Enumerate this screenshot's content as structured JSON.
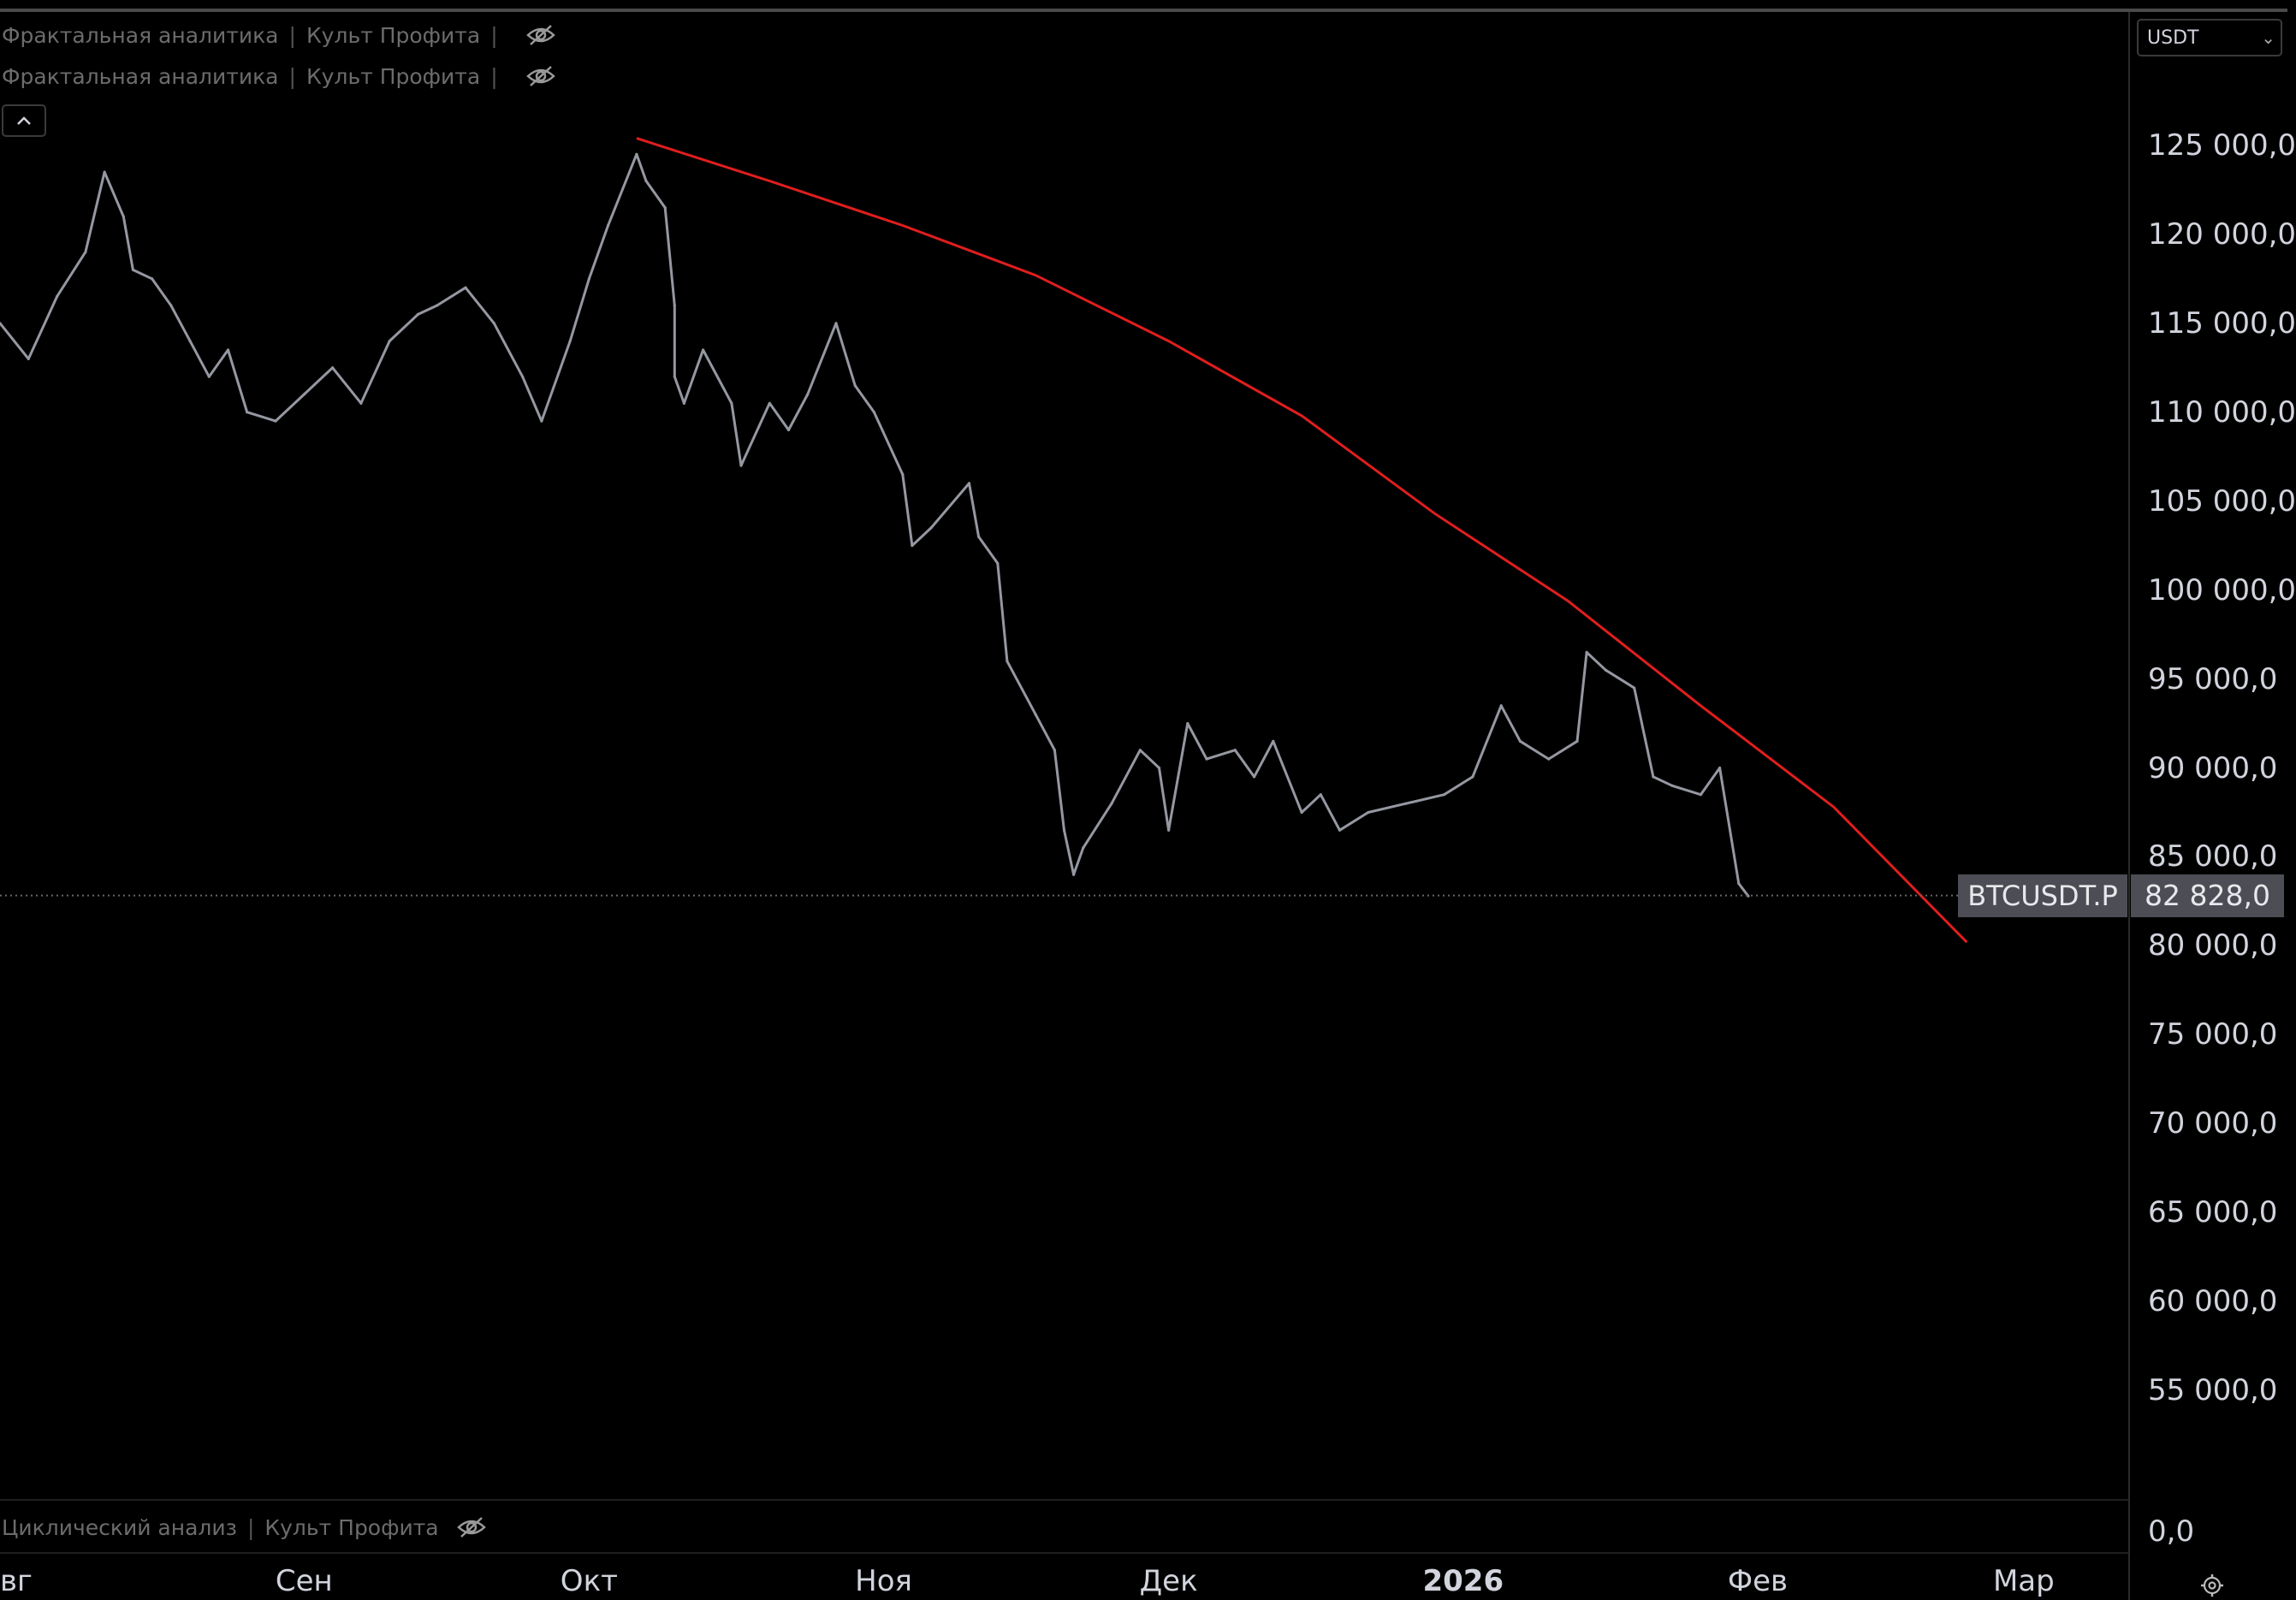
{
  "indicators": [
    {
      "name": "Фрактальная аналитика",
      "author": "Культ Профита",
      "trail": "|",
      "icon": "eye-hidden-icon"
    },
    {
      "name": "Фрактальная аналитика",
      "author": "Культ Профита",
      "trail": "|",
      "icon": "eye-hidden-icon"
    }
  ],
  "oscillator": {
    "name": "Циклический анализ",
    "author": "Культ Профита",
    "icon": "eye-hidden-icon",
    "value_label": "0,0"
  },
  "currency_selector": {
    "value": "USDT"
  },
  "collapse_button": {
    "icon": "chevron-up-icon"
  },
  "settings_icon": "gear-icon",
  "separator": "|",
  "colors": {
    "background": "#000000",
    "price_series": "#9598a1",
    "trendline": "#e01e1e",
    "tag_bg": "#4d4d55"
  },
  "chart_data": {
    "type": "line",
    "symbol": "BTCUSDT.P",
    "last_price": 82828,
    "last_price_label": "82 828,0",
    "x_axis_labels": [
      "вг",
      "Сен",
      "Окт",
      "Ноя",
      "Дек",
      "2026",
      "Фев",
      "Мар"
    ],
    "y_axis_labels": [
      "125 000,0",
      "120 000,0",
      "115 000,0",
      "110 000,0",
      "105 000,0",
      "100 000,0",
      "95 000,0",
      "90 000,0",
      "85 000,0",
      "80 000,0",
      "75 000,0",
      "70 000,0",
      "65 000,0",
      "60 000,0",
      "55 000,0"
    ],
    "y_ticks": [
      125000,
      120000,
      115000,
      110000,
      105000,
      100000,
      95000,
      90000,
      85000,
      80000,
      75000,
      70000,
      65000,
      60000,
      55000
    ],
    "x_range": [
      "2025-07-31",
      "2026-03-12"
    ],
    "ylim": [
      48800,
      132500
    ],
    "grid": false,
    "series": [
      {
        "x": [
          "2025-07-31",
          "2025-08-03",
          "2025-08-06",
          "2025-08-09",
          "2025-08-11",
          "2025-08-13",
          "2025-08-14",
          "2025-08-16",
          "2025-08-18",
          "2025-08-20",
          "2025-08-22",
          "2025-08-24",
          "2025-08-26",
          "2025-08-29",
          "2025-09-01",
          "2025-09-04",
          "2025-09-07",
          "2025-09-10",
          "2025-09-13",
          "2025-09-15",
          "2025-09-18",
          "2025-09-21",
          "2025-09-24",
          "2025-09-26",
          "2025-09-29",
          "2025-10-01",
          "2025-10-03",
          "2025-10-06",
          "2025-10-07",
          "2025-10-09",
          "2025-10-10",
          "2025-10-10",
          "2025-10-11",
          "2025-10-13",
          "2025-10-16",
          "2025-10-17",
          "2025-10-20",
          "2025-10-22",
          "2025-10-24",
          "2025-10-27",
          "2025-10-29",
          "2025-10-31",
          "2025-11-03",
          "2025-11-04",
          "2025-11-06",
          "2025-11-10",
          "2025-11-11",
          "2025-11-13",
          "2025-11-14",
          "2025-11-17",
          "2025-11-19",
          "2025-11-20",
          "2025-11-21",
          "2025-11-22",
          "2025-11-25",
          "2025-11-28",
          "2025-11-30",
          "2025-12-01",
          "2025-12-03",
          "2025-12-05",
          "2025-12-08",
          "2025-12-10",
          "2025-12-12",
          "2025-12-15",
          "2025-12-17",
          "2025-12-19",
          "2025-12-22",
          "2025-12-26",
          "2025-12-30",
          "2026-01-02",
          "2026-01-05",
          "2026-01-07",
          "2026-01-10",
          "2026-01-13",
          "2026-01-14",
          "2026-01-16",
          "2026-01-19",
          "2026-01-21",
          "2026-01-23",
          "2026-01-26",
          "2026-01-28",
          "2026-01-30",
          "2026-01-31"
        ],
        "y": [
          115000,
          113000,
          116500,
          119000,
          123500,
          121000,
          118000,
          117500,
          116000,
          114000,
          112000,
          113500,
          110000,
          109500,
          111000,
          112500,
          110500,
          114000,
          115500,
          116000,
          117000,
          115000,
          112000,
          109500,
          114000,
          117500,
          120500,
          124500,
          123000,
          121500,
          116000,
          112000,
          110500,
          113500,
          110500,
          107000,
          110500,
          109000,
          111000,
          115000,
          111500,
          110000,
          106500,
          102500,
          103500,
          106000,
          103000,
          101500,
          96000,
          93000,
          91000,
          86500,
          84000,
          85500,
          88000,
          91000,
          90000,
          86500,
          92500,
          90500,
          91000,
          89500,
          91500,
          87500,
          88500,
          86500,
          87500,
          88000,
          88500,
          89500,
          93500,
          91500,
          90500,
          91500,
          96500,
          95500,
          94500,
          89500,
          89000,
          88500,
          90000,
          83500,
          82800
        ]
      }
    ],
    "trendline": {
      "x": [
        "2025-10-06",
        "2025-10-20",
        "2025-11-03",
        "2025-11-17",
        "2025-12-01",
        "2025-12-15",
        "2025-12-29",
        "2026-01-12",
        "2026-01-26",
        "2026-02-09",
        "2026-02-23"
      ],
      "y": [
        125400,
        123000,
        120500,
        117700,
        114000,
        109800,
        104300,
        99400,
        93500,
        87800,
        80200
      ]
    }
  }
}
